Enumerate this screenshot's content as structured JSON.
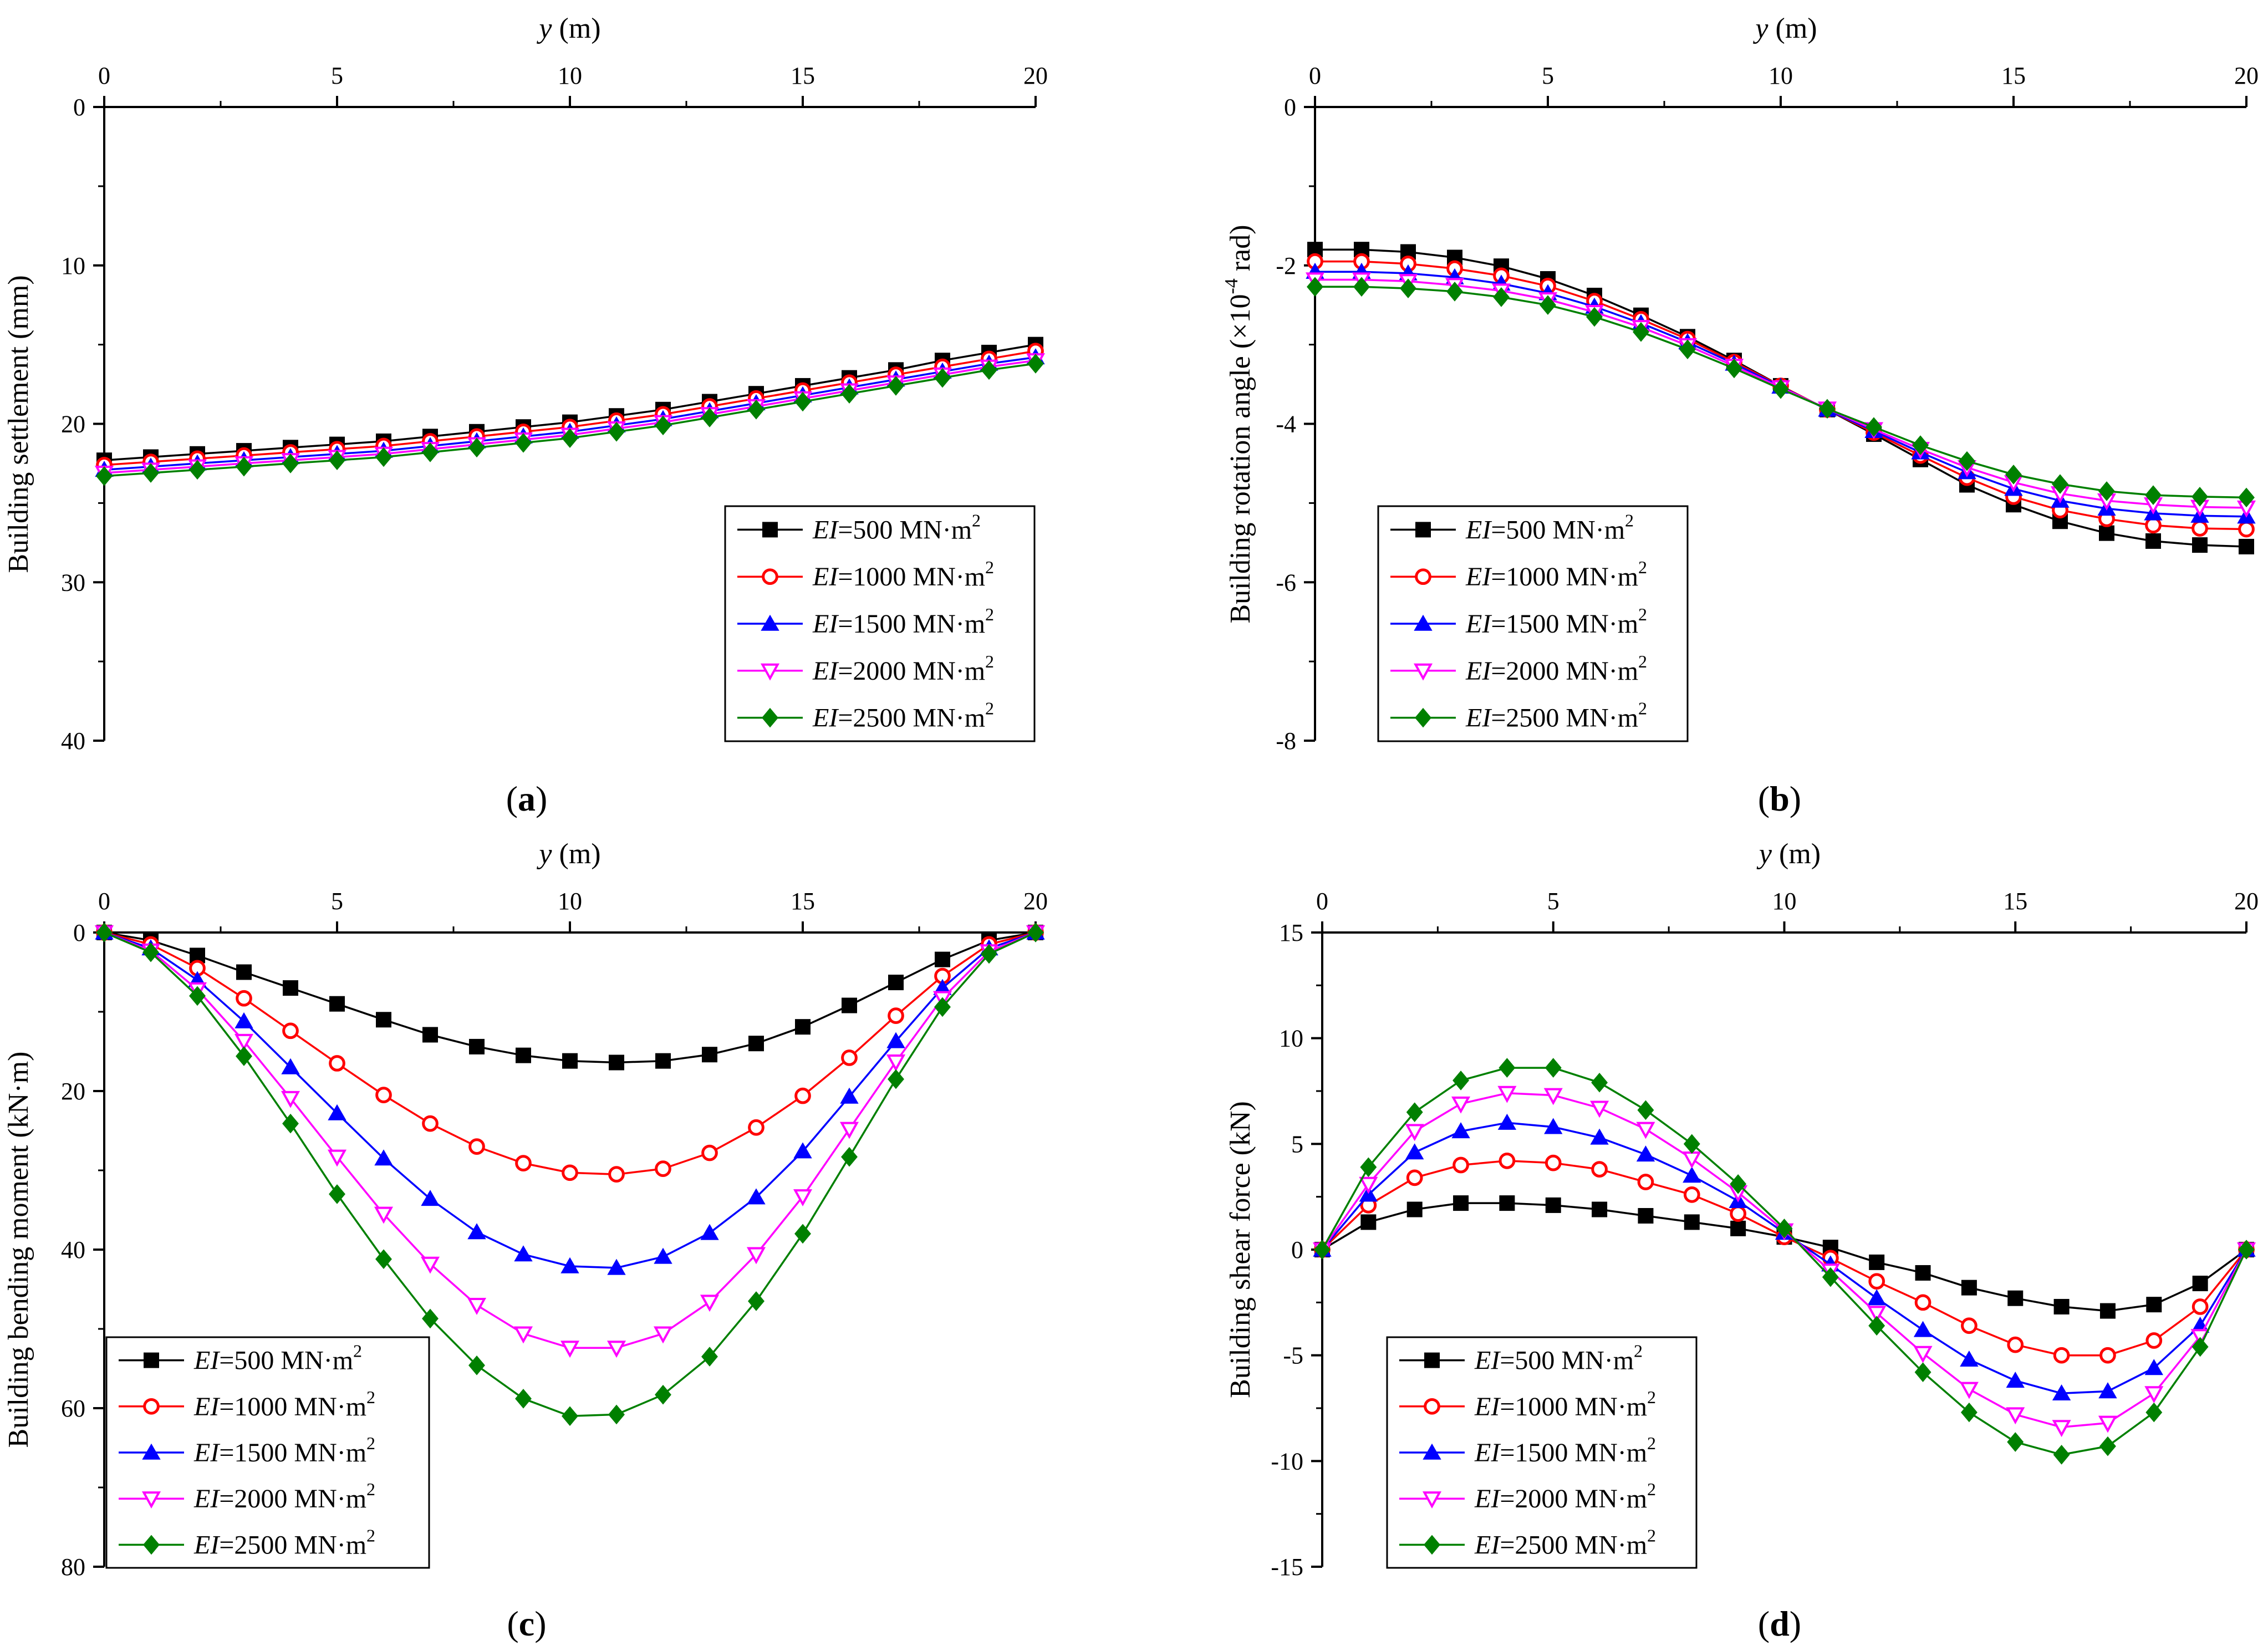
{
  "figure_labels": {
    "legend_prefix": "EI",
    "legend_unit": "MN·m",
    "legend_sup": "2",
    "exp_base": "×10",
    "exp_power": "-4",
    "rad": "rad"
  },
  "chart_data": [
    {
      "type": "line",
      "caption": "a",
      "xlabel": "y",
      "xunit": "(m)",
      "ylabel": "Building settlement (mm)",
      "x": [
        0,
        1,
        2,
        3,
        4,
        5,
        6,
        7,
        8,
        9,
        10,
        11,
        12,
        13,
        14,
        15,
        16,
        17,
        18,
        19,
        20
      ],
      "xlim": [
        0,
        20
      ],
      "xticks": [
        0,
        5,
        10,
        15,
        20
      ],
      "ylim": [
        0,
        40
      ],
      "y_inverted": true,
      "yticks": [
        0,
        10,
        20,
        30,
        40
      ],
      "legend_position": "bottom-right",
      "series": [
        {
          "name": "EI=500 MN·m2",
          "ei": "=500 ",
          "marker": "square",
          "color": "#000000",
          "values": [
            22.3,
            22.1,
            21.9,
            21.7,
            21.5,
            21.3,
            21.1,
            20.8,
            20.5,
            20.2,
            19.9,
            19.5,
            19.1,
            18.6,
            18.1,
            17.6,
            17.1,
            16.6,
            16.0,
            15.5,
            15.0
          ]
        },
        {
          "name": "EI=1000 MN·m2",
          "ei": "=1000 ",
          "marker": "circle-open",
          "color": "#ff0000",
          "values": [
            22.6,
            22.4,
            22.2,
            22.0,
            21.8,
            21.6,
            21.4,
            21.1,
            20.8,
            20.5,
            20.2,
            19.8,
            19.4,
            18.9,
            18.4,
            17.9,
            17.4,
            16.9,
            16.4,
            15.9,
            15.4
          ]
        },
        {
          "name": "EI=1500 MN·m2",
          "ei": "=1500 ",
          "marker": "triangle-up",
          "color": "#0000ff",
          "values": [
            22.9,
            22.7,
            22.5,
            22.3,
            22.1,
            21.9,
            21.7,
            21.4,
            21.1,
            20.8,
            20.5,
            20.1,
            19.7,
            19.2,
            18.7,
            18.2,
            17.7,
            17.2,
            16.7,
            16.2,
            15.8
          ]
        },
        {
          "name": "EI=2000 MN·m2",
          "ei": "=2000 ",
          "marker": "triangle-down-open",
          "color": "#ff00ff",
          "values": [
            23.1,
            22.9,
            22.7,
            22.5,
            22.3,
            22.1,
            21.9,
            21.6,
            21.3,
            21.0,
            20.7,
            20.3,
            19.9,
            19.4,
            18.9,
            18.4,
            17.9,
            17.4,
            16.9,
            16.4,
            16.0
          ]
        },
        {
          "name": "EI=2500 MN·m2",
          "ei": "=2500 ",
          "marker": "diamond",
          "color": "#008000",
          "values": [
            23.3,
            23.1,
            22.9,
            22.7,
            22.5,
            22.3,
            22.1,
            21.8,
            21.5,
            21.2,
            20.9,
            20.5,
            20.1,
            19.6,
            19.1,
            18.6,
            18.1,
            17.6,
            17.1,
            16.6,
            16.2
          ]
        }
      ]
    },
    {
      "type": "line",
      "caption": "b",
      "xlabel": "y",
      "xunit": "(m)",
      "ylabel": "Building rotation angle",
      "x": [
        0,
        1,
        2,
        3,
        4,
        5,
        6,
        7,
        8,
        9,
        10,
        11,
        12,
        13,
        14,
        15,
        16,
        17,
        18,
        19,
        20
      ],
      "xlim": [
        0,
        20
      ],
      "xticks": [
        0,
        5,
        10,
        15,
        20
      ],
      "ylim": [
        -8,
        0
      ],
      "y_inverted": false,
      "yticks": [
        0,
        -2,
        -4,
        -6,
        -8
      ],
      "legend_position": "bottom-right",
      "series": [
        {
          "name": "EI=500 MN·m2",
          "ei": "=500 ",
          "marker": "square",
          "color": "#000000",
          "values": [
            -1.8,
            -1.8,
            -1.83,
            -1.9,
            -2.01,
            -2.17,
            -2.38,
            -2.63,
            -2.9,
            -3.2,
            -3.52,
            -3.82,
            -4.13,
            -4.45,
            -4.77,
            -5.02,
            -5.23,
            -5.38,
            -5.48,
            -5.53,
            -5.55
          ]
        },
        {
          "name": "EI=1000 MN·m2",
          "ei": "=1000 ",
          "marker": "circle-open",
          "color": "#ff0000",
          "values": [
            -1.95,
            -1.95,
            -1.98,
            -2.04,
            -2.13,
            -2.26,
            -2.45,
            -2.68,
            -2.93,
            -3.22,
            -3.52,
            -3.82,
            -4.11,
            -4.4,
            -4.68,
            -4.92,
            -5.09,
            -5.2,
            -5.28,
            -5.32,
            -5.33
          ]
        },
        {
          "name": "EI=1500 MN·m2",
          "ei": "=1500 ",
          "marker": "triangle-up",
          "color": "#0000ff",
          "values": [
            -2.08,
            -2.08,
            -2.1,
            -2.15,
            -2.23,
            -2.35,
            -2.52,
            -2.73,
            -2.97,
            -3.24,
            -3.53,
            -3.82,
            -4.09,
            -4.36,
            -4.61,
            -4.82,
            -4.97,
            -5.07,
            -5.13,
            -5.16,
            -5.17
          ]
        },
        {
          "name": "EI=2000 MN·m2",
          "ei": "=2000 ",
          "marker": "triangle-down-open",
          "color": "#ff00ff",
          "values": [
            -2.18,
            -2.18,
            -2.2,
            -2.25,
            -2.32,
            -2.43,
            -2.59,
            -2.78,
            -3.01,
            -3.27,
            -3.54,
            -3.81,
            -4.07,
            -4.32,
            -4.55,
            -4.74,
            -4.88,
            -4.97,
            -5.02,
            -5.05,
            -5.06
          ]
        },
        {
          "name": "EI=2500 MN·m2",
          "ei": "=2500 ",
          "marker": "diamond",
          "color": "#008000",
          "values": [
            -2.27,
            -2.27,
            -2.29,
            -2.33,
            -2.4,
            -2.5,
            -2.65,
            -2.84,
            -3.06,
            -3.3,
            -3.56,
            -3.81,
            -4.04,
            -4.27,
            -4.47,
            -4.64,
            -4.76,
            -4.85,
            -4.9,
            -4.92,
            -4.93
          ]
        }
      ]
    },
    {
      "type": "line",
      "caption": "c",
      "xlabel": "y",
      "xunit": "(m)",
      "ylabel": "Building bending moment (kN·m)",
      "x": [
        0,
        1,
        2,
        3,
        4,
        5,
        6,
        7,
        8,
        9,
        10,
        11,
        12,
        13,
        14,
        15,
        16,
        17,
        18,
        19,
        20
      ],
      "xlim": [
        0,
        20
      ],
      "xticks": [
        0,
        5,
        10,
        15,
        20
      ],
      "ylim": [
        0,
        80
      ],
      "y_inverted": true,
      "yticks": [
        0,
        20,
        40,
        60,
        80
      ],
      "legend_position": "bottom-left",
      "series": [
        {
          "name": "EI=500 MN·m2",
          "ei": "=500 ",
          "marker": "square",
          "color": "#000000",
          "values": [
            0,
            1.0,
            2.9,
            5.0,
            7.0,
            9.0,
            11.0,
            12.9,
            14.4,
            15.5,
            16.2,
            16.4,
            16.2,
            15.4,
            14.0,
            11.9,
            9.2,
            6.3,
            3.4,
            1.0,
            0
          ]
        },
        {
          "name": "EI=1000 MN·m2",
          "ei": "=1000 ",
          "marker": "circle-open",
          "color": "#ff0000",
          "values": [
            0,
            1.5,
            4.5,
            8.3,
            12.4,
            16.5,
            20.5,
            24.1,
            27.0,
            29.1,
            30.3,
            30.5,
            29.8,
            27.8,
            24.6,
            20.6,
            15.8,
            10.5,
            5.5,
            1.5,
            0
          ]
        },
        {
          "name": "EI=1500 MN·m2",
          "ei": "=1500 ",
          "marker": "triangle-up",
          "color": "#0000ff",
          "values": [
            0,
            2.0,
            6.0,
            11.2,
            17.0,
            22.8,
            28.5,
            33.6,
            37.8,
            40.6,
            42.1,
            42.3,
            40.9,
            37.9,
            33.4,
            27.6,
            20.7,
            13.7,
            7.0,
            2.0,
            0
          ]
        },
        {
          "name": "EI=2000 MN·m2",
          "ei": "=2000 ",
          "marker": "triangle-down-open",
          "color": "#ff00ff",
          "values": [
            0,
            2.3,
            7.2,
            13.7,
            20.9,
            28.3,
            35.5,
            41.8,
            47.0,
            50.6,
            52.4,
            52.4,
            50.6,
            46.6,
            40.6,
            33.3,
            24.8,
            16.3,
            8.3,
            2.4,
            0
          ]
        },
        {
          "name": "EI=2500 MN·m2",
          "ei": "=2500 ",
          "marker": "diamond",
          "color": "#008000",
          "values": [
            0,
            2.5,
            8.0,
            15.6,
            24.1,
            33.0,
            41.2,
            48.7,
            54.6,
            58.8,
            61.0,
            60.8,
            58.3,
            53.5,
            46.5,
            38.0,
            28.3,
            18.5,
            9.4,
            2.7,
            0
          ]
        }
      ]
    },
    {
      "type": "line",
      "caption": "d",
      "xlabel": "y",
      "xunit": "(m)",
      "ylabel": "Building shear force (kN)",
      "x": [
        0,
        1,
        2,
        3,
        4,
        5,
        6,
        7,
        8,
        9,
        10,
        11,
        12,
        13,
        14,
        15,
        16,
        17,
        18,
        19,
        20
      ],
      "xlim": [
        0,
        20
      ],
      "xticks": [
        0,
        5,
        10,
        15,
        20
      ],
      "ylim": [
        -15,
        15
      ],
      "y_inverted": false,
      "yticks": [
        15,
        10,
        5,
        0,
        -5,
        -10,
        -15
      ],
      "legend_position": "bottom-right",
      "series": [
        {
          "name": "EI=500 MN·m2",
          "ei": "=500 ",
          "marker": "square",
          "color": "#000000",
          "values": [
            0,
            1.3,
            1.9,
            2.2,
            2.2,
            2.1,
            1.9,
            1.6,
            1.3,
            1.0,
            0.6,
            0.1,
            -0.6,
            -1.1,
            -1.8,
            -2.3,
            -2.7,
            -2.9,
            -2.6,
            -1.6,
            0
          ]
        },
        {
          "name": "EI=1000 MN·m2",
          "ei": "=1000 ",
          "marker": "circle-open",
          "color": "#ff0000",
          "values": [
            0,
            2.1,
            3.4,
            4.0,
            4.2,
            4.1,
            3.8,
            3.2,
            2.6,
            1.7,
            0.6,
            -0.4,
            -1.5,
            -2.5,
            -3.6,
            -4.5,
            -5.0,
            -5.0,
            -4.3,
            -2.7,
            0
          ]
        },
        {
          "name": "EI=1500 MN·m2",
          "ei": "=1500 ",
          "marker": "triangle-up",
          "color": "#0000ff",
          "values": [
            0,
            2.6,
            4.6,
            5.6,
            6.0,
            5.8,
            5.3,
            4.5,
            3.5,
            2.3,
            0.8,
            -0.7,
            -2.3,
            -3.8,
            -5.2,
            -6.2,
            -6.8,
            -6.7,
            -5.6,
            -3.6,
            0
          ]
        },
        {
          "name": "EI=2000 MN·m2",
          "ei": "=2000 ",
          "marker": "triangle-down-open",
          "color": "#ff00ff",
          "values": [
            0,
            3.1,
            5.6,
            6.9,
            7.4,
            7.3,
            6.7,
            5.7,
            4.3,
            2.7,
            0.9,
            -1.0,
            -3.0,
            -4.9,
            -6.6,
            -7.8,
            -8.4,
            -8.2,
            -6.8,
            -4.1,
            0
          ]
        },
        {
          "name": "EI=2500 MN·m2",
          "ei": "=2500 ",
          "marker": "diamond",
          "color": "#008000",
          "values": [
            0,
            3.9,
            6.5,
            8.0,
            8.6,
            8.6,
            7.9,
            6.6,
            5.0,
            3.1,
            1.0,
            -1.3,
            -3.6,
            -5.8,
            -7.7,
            -9.1,
            -9.7,
            -9.3,
            -7.7,
            -4.6,
            0
          ]
        }
      ]
    }
  ]
}
